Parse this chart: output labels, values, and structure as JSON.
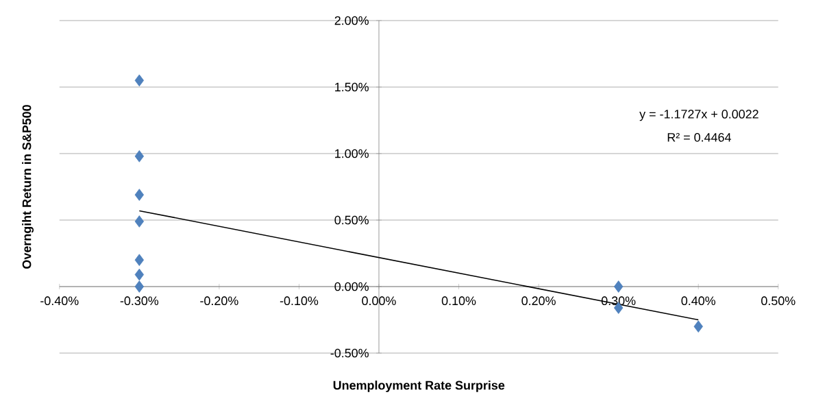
{
  "chart_data": {
    "type": "scatter",
    "xlabel": "Unemployment Rate Surprise",
    "ylabel": "Overngiht Return in S&P500",
    "xlim": [
      -0.4,
      0.5
    ],
    "xticks": [
      {
        "value": -0.4,
        "label": "-0.40%"
      },
      {
        "value": -0.3,
        "label": "-0.30%"
      },
      {
        "value": -0.2,
        "label": "-0.20%"
      },
      {
        "value": -0.1,
        "label": "-0.10%"
      },
      {
        "value": 0,
        "label": "0.00%"
      },
      {
        "value": 0.1,
        "label": "0.10%"
      },
      {
        "value": 0.2,
        "label": "0.20%"
      },
      {
        "value": 0.3,
        "label": "0.30%"
      },
      {
        "value": 0.4,
        "label": "0.40%"
      },
      {
        "value": 0.5,
        "label": "0.50%"
      }
    ],
    "ylim": [
      -0.5,
      2
    ],
    "yticks": [
      {
        "value": -0.5,
        "label": "-0.50%"
      },
      {
        "value": 0,
        "label": "0.00%"
      },
      {
        "value": 0.5,
        "label": "0.50%"
      },
      {
        "value": 1,
        "label": "1.00%"
      },
      {
        "value": 1.5,
        "label": "1.50%"
      },
      {
        "value": 2,
        "label": "2.00%"
      }
    ],
    "grid": "y",
    "marker": "diamond",
    "series": [
      {
        "type": "scatter",
        "color": "#4f81bd",
        "x": [
          -0.3,
          -0.3,
          -0.3,
          -0.3,
          -0.3,
          -0.3,
          -0.3,
          0.3,
          0.3,
          0.4
        ],
        "values": [
          1.55,
          0.98,
          0.69,
          0.49,
          0.2,
          0.09,
          0,
          0,
          -0.16,
          -0.3
        ]
      },
      {
        "type": "line",
        "marker": "none",
        "color": "#000000",
        "x": [
          -0.3,
          0.4
        ],
        "values": [
          0.57,
          -0.25
        ]
      }
    ],
    "annotations": [
      "y = -1.1727x + 0.0022",
      "R² = 0.4464"
    ]
  }
}
